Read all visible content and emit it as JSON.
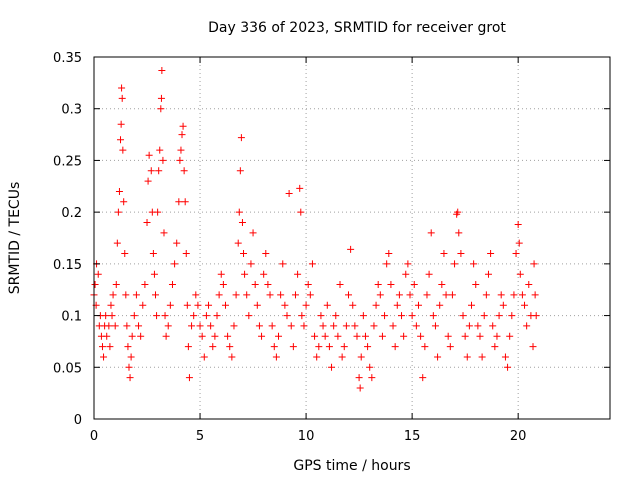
{
  "chart_data": {
    "type": "scatter",
    "title": "Day 336 of 2023, SRMTID for receiver grot",
    "xlabel": "GPS time / hours",
    "ylabel": "SRMTID / TECUs",
    "xlim": [
      0,
      24.33
    ],
    "ylim": [
      0,
      0.35
    ],
    "xticks": [
      0,
      5,
      10,
      15,
      20
    ],
    "xtick_labels": [
      "0",
      "5",
      "10",
      "15",
      "20"
    ],
    "yticks": [
      0,
      0.05,
      0.1,
      0.15,
      0.2,
      0.25,
      0.3,
      0.35
    ],
    "ytick_labels": [
      "0",
      "0.05",
      "0.1",
      "0.15",
      "0.2",
      "0.25",
      "0.3",
      "0.35"
    ],
    "grid": true,
    "marker": "plus",
    "color": "#ff0000",
    "series": [
      {
        "points": [
          [
            0.0,
            0.12
          ],
          [
            0.05,
            0.13
          ],
          [
            0.1,
            0.11
          ],
          [
            0.12,
            0.15
          ],
          [
            0.2,
            0.14
          ],
          [
            0.25,
            0.09
          ],
          [
            0.3,
            0.1
          ],
          [
            0.35,
            0.08
          ],
          [
            0.4,
            0.07
          ],
          [
            0.45,
            0.06
          ],
          [
            0.5,
            0.09
          ],
          [
            0.55,
            0.1
          ],
          [
            0.6,
            0.08
          ],
          [
            0.7,
            0.09
          ],
          [
            0.75,
            0.07
          ],
          [
            0.8,
            0.11
          ],
          [
            0.85,
            0.1
          ],
          [
            0.9,
            0.12
          ],
          [
            1.0,
            0.09
          ],
          [
            1.05,
            0.13
          ],
          [
            1.1,
            0.17
          ],
          [
            1.15,
            0.2
          ],
          [
            1.2,
            0.22
          ],
          [
            1.25,
            0.27
          ],
          [
            1.28,
            0.285
          ],
          [
            1.3,
            0.32
          ],
          [
            1.33,
            0.31
          ],
          [
            1.36,
            0.26
          ],
          [
            1.4,
            0.21
          ],
          [
            1.45,
            0.16
          ],
          [
            1.5,
            0.12
          ],
          [
            1.55,
            0.09
          ],
          [
            1.6,
            0.07
          ],
          [
            1.65,
            0.05
          ],
          [
            1.7,
            0.04
          ],
          [
            1.75,
            0.06
          ],
          [
            1.8,
            0.08
          ],
          [
            1.9,
            0.1
          ],
          [
            2.0,
            0.12
          ],
          [
            2.1,
            0.09
          ],
          [
            2.2,
            0.08
          ],
          [
            2.3,
            0.11
          ],
          [
            2.4,
            0.13
          ],
          [
            2.5,
            0.19
          ],
          [
            2.55,
            0.23
          ],
          [
            2.6,
            0.255
          ],
          [
            2.7,
            0.24
          ],
          [
            2.75,
            0.2
          ],
          [
            2.8,
            0.16
          ],
          [
            2.85,
            0.14
          ],
          [
            2.9,
            0.12
          ],
          [
            2.95,
            0.1
          ],
          [
            3.0,
            0.2
          ],
          [
            3.05,
            0.24
          ],
          [
            3.1,
            0.26
          ],
          [
            3.15,
            0.3
          ],
          [
            3.18,
            0.31
          ],
          [
            3.2,
            0.337
          ],
          [
            3.25,
            0.25
          ],
          [
            3.3,
            0.18
          ],
          [
            3.35,
            0.1
          ],
          [
            3.4,
            0.08
          ],
          [
            3.5,
            0.09
          ],
          [
            3.6,
            0.11
          ],
          [
            3.7,
            0.13
          ],
          [
            3.8,
            0.15
          ],
          [
            3.9,
            0.17
          ],
          [
            4.0,
            0.21
          ],
          [
            4.05,
            0.25
          ],
          [
            4.1,
            0.26
          ],
          [
            4.15,
            0.275
          ],
          [
            4.2,
            0.283
          ],
          [
            4.25,
            0.24
          ],
          [
            4.3,
            0.21
          ],
          [
            4.35,
            0.16
          ],
          [
            4.4,
            0.11
          ],
          [
            4.45,
            0.07
          ],
          [
            4.5,
            0.04
          ],
          [
            4.6,
            0.09
          ],
          [
            4.7,
            0.1
          ],
          [
            4.8,
            0.12
          ],
          [
            4.9,
            0.11
          ],
          [
            5.0,
            0.09
          ],
          [
            5.1,
            0.08
          ],
          [
            5.2,
            0.06
          ],
          [
            5.3,
            0.1
          ],
          [
            5.4,
            0.11
          ],
          [
            5.5,
            0.09
          ],
          [
            5.6,
            0.07
          ],
          [
            5.7,
            0.08
          ],
          [
            5.8,
            0.1
          ],
          [
            5.9,
            0.12
          ],
          [
            6.0,
            0.14
          ],
          [
            6.1,
            0.13
          ],
          [
            6.2,
            0.11
          ],
          [
            6.3,
            0.08
          ],
          [
            6.4,
            0.07
          ],
          [
            6.5,
            0.06
          ],
          [
            6.6,
            0.09
          ],
          [
            6.7,
            0.12
          ],
          [
            6.8,
            0.17
          ],
          [
            6.85,
            0.2
          ],
          [
            6.9,
            0.24
          ],
          [
            6.95,
            0.272
          ],
          [
            7.0,
            0.19
          ],
          [
            7.05,
            0.16
          ],
          [
            7.1,
            0.14
          ],
          [
            7.2,
            0.12
          ],
          [
            7.3,
            0.1
          ],
          [
            7.4,
            0.15
          ],
          [
            7.5,
            0.18
          ],
          [
            7.6,
            0.13
          ],
          [
            7.7,
            0.11
          ],
          [
            7.8,
            0.09
          ],
          [
            7.9,
            0.08
          ],
          [
            8.0,
            0.14
          ],
          [
            8.1,
            0.16
          ],
          [
            8.2,
            0.13
          ],
          [
            8.3,
            0.12
          ],
          [
            8.4,
            0.09
          ],
          [
            8.5,
            0.07
          ],
          [
            8.6,
            0.06
          ],
          [
            8.7,
            0.08
          ],
          [
            8.8,
            0.12
          ],
          [
            8.9,
            0.15
          ],
          [
            9.0,
            0.11
          ],
          [
            9.1,
            0.1
          ],
          [
            9.2,
            0.218
          ],
          [
            9.3,
            0.09
          ],
          [
            9.4,
            0.07
          ],
          [
            9.5,
            0.12
          ],
          [
            9.6,
            0.14
          ],
          [
            9.7,
            0.223
          ],
          [
            9.75,
            0.2
          ],
          [
            9.8,
            0.1
          ],
          [
            9.9,
            0.09
          ],
          [
            10.0,
            0.11
          ],
          [
            10.1,
            0.13
          ],
          [
            10.2,
            0.12
          ],
          [
            10.3,
            0.15
          ],
          [
            10.4,
            0.08
          ],
          [
            10.5,
            0.06
          ],
          [
            10.6,
            0.07
          ],
          [
            10.7,
            0.1
          ],
          [
            10.8,
            0.09
          ],
          [
            10.9,
            0.08
          ],
          [
            11.0,
            0.11
          ],
          [
            11.1,
            0.07
          ],
          [
            11.2,
            0.05
          ],
          [
            11.3,
            0.09
          ],
          [
            11.4,
            0.1
          ],
          [
            11.5,
            0.08
          ],
          [
            11.6,
            0.13
          ],
          [
            11.7,
            0.06
          ],
          [
            11.8,
            0.07
          ],
          [
            11.9,
            0.09
          ],
          [
            12.0,
            0.12
          ],
          [
            12.1,
            0.164
          ],
          [
            12.2,
            0.11
          ],
          [
            12.3,
            0.09
          ],
          [
            12.4,
            0.08
          ],
          [
            12.5,
            0.04
          ],
          [
            12.55,
            0.03
          ],
          [
            12.6,
            0.06
          ],
          [
            12.7,
            0.1
          ],
          [
            12.8,
            0.08
          ],
          [
            12.9,
            0.07
          ],
          [
            13.0,
            0.05
          ],
          [
            13.1,
            0.04
          ],
          [
            13.2,
            0.09
          ],
          [
            13.3,
            0.11
          ],
          [
            13.4,
            0.13
          ],
          [
            13.5,
            0.12
          ],
          [
            13.6,
            0.08
          ],
          [
            13.7,
            0.1
          ],
          [
            13.8,
            0.15
          ],
          [
            13.9,
            0.16
          ],
          [
            14.0,
            0.13
          ],
          [
            14.1,
            0.09
          ],
          [
            14.2,
            0.07
          ],
          [
            14.3,
            0.11
          ],
          [
            14.4,
            0.12
          ],
          [
            14.5,
            0.1
          ],
          [
            14.6,
            0.08
          ],
          [
            14.7,
            0.14
          ],
          [
            14.8,
            0.15
          ],
          [
            14.9,
            0.12
          ],
          [
            15.0,
            0.1
          ],
          [
            15.1,
            0.13
          ],
          [
            15.2,
            0.09
          ],
          [
            15.3,
            0.11
          ],
          [
            15.4,
            0.08
          ],
          [
            15.5,
            0.04
          ],
          [
            15.6,
            0.07
          ],
          [
            15.7,
            0.12
          ],
          [
            15.8,
            0.14
          ],
          [
            15.9,
            0.18
          ],
          [
            16.0,
            0.1
          ],
          [
            16.1,
            0.09
          ],
          [
            16.2,
            0.06
          ],
          [
            16.3,
            0.11
          ],
          [
            16.4,
            0.13
          ],
          [
            16.5,
            0.16
          ],
          [
            16.6,
            0.12
          ],
          [
            16.7,
            0.08
          ],
          [
            16.8,
            0.07
          ],
          [
            16.9,
            0.12
          ],
          [
            17.0,
            0.15
          ],
          [
            17.1,
            0.198
          ],
          [
            17.15,
            0.2
          ],
          [
            17.2,
            0.18
          ],
          [
            17.3,
            0.16
          ],
          [
            17.4,
            0.1
          ],
          [
            17.5,
            0.08
          ],
          [
            17.6,
            0.06
          ],
          [
            17.7,
            0.09
          ],
          [
            17.8,
            0.11
          ],
          [
            17.9,
            0.15
          ],
          [
            18.0,
            0.13
          ],
          [
            18.1,
            0.09
          ],
          [
            18.2,
            0.08
          ],
          [
            18.3,
            0.06
          ],
          [
            18.4,
            0.1
          ],
          [
            18.5,
            0.12
          ],
          [
            18.6,
            0.14
          ],
          [
            18.7,
            0.16
          ],
          [
            18.8,
            0.09
          ],
          [
            18.9,
            0.07
          ],
          [
            19.0,
            0.08
          ],
          [
            19.1,
            0.1
          ],
          [
            19.2,
            0.12
          ],
          [
            19.3,
            0.11
          ],
          [
            19.4,
            0.06
          ],
          [
            19.5,
            0.05
          ],
          [
            19.6,
            0.08
          ],
          [
            19.7,
            0.1
          ],
          [
            19.8,
            0.12
          ],
          [
            19.9,
            0.16
          ],
          [
            20.0,
            0.188
          ],
          [
            20.05,
            0.17
          ],
          [
            20.1,
            0.14
          ],
          [
            20.2,
            0.12
          ],
          [
            20.3,
            0.11
          ],
          [
            20.4,
            0.09
          ],
          [
            20.5,
            0.13
          ],
          [
            20.6,
            0.1
          ],
          [
            20.7,
            0.07
          ],
          [
            20.75,
            0.15
          ],
          [
            20.8,
            0.12
          ],
          [
            20.85,
            0.1
          ]
        ]
      }
    ]
  }
}
